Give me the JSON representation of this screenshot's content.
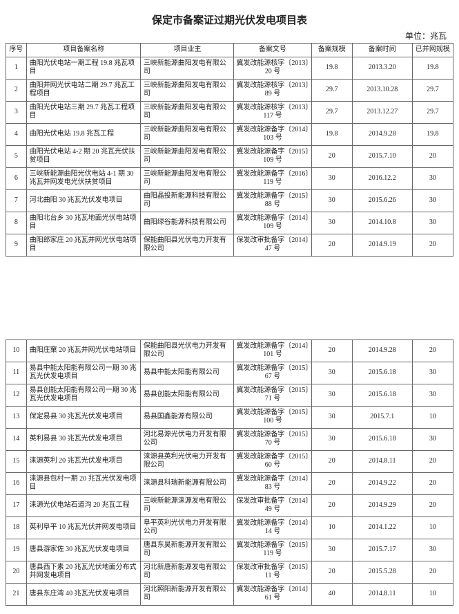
{
  "title": "保定市备案证过期光伏发电项目表",
  "unit": "单位：兆瓦",
  "columns": [
    "序号",
    "项目备案名称",
    "项目业主",
    "备案文号",
    "备案规模",
    "备案时间",
    "已并网规模"
  ],
  "rows1": [
    [
      "1",
      "曲阳光伏电站一期工程 19.8 兆瓦项目",
      "三峡新能源曲阳发电有限公司",
      "冀发改能源核字〔2013〕20 号",
      "19.8",
      "2013.3.20",
      "19.8"
    ],
    [
      "2",
      "曲阳并网光伏电站二期 29.7 兆瓦工程项目",
      "三峡新能源曲阳发电有限公司",
      "冀发改能源核字〔2013〕89 号",
      "29.7",
      "2013.10.28",
      "29.7"
    ],
    [
      "3",
      "曲阳光伏电站三期 29.7 兆瓦工程项目",
      "三峡新能源曲阳发电有限公司",
      "冀发改能源核字〔2013〕117 号",
      "29.7",
      "2013.12.27",
      "29.7"
    ],
    [
      "4",
      "曲阳光伏电站 19.8 兆瓦工程",
      "三峡新能源曲阳发电有限公司",
      "冀发改能源备字〔2014〕103 号",
      "19.8",
      "2014.9.28",
      "19.8"
    ],
    [
      "5",
      "曲阳光伏电站 4-2 期 20 兆瓦光伏扶贫项目",
      "三峡新能源曲阳发电有限公司",
      "冀发改能源备字〔2015〕109 号",
      "20",
      "2015.7.10",
      "20"
    ],
    [
      "6",
      "三峡新能源曲阳光伏电站 4-1 期 30 兆瓦并网发电光伏扶贫项目",
      "三峡新能源曲阳发电有限公司",
      "冀发改能源备字〔2016〕119 号",
      "30",
      "2016.12.2",
      "30"
    ],
    [
      "7",
      "河北曲阳 30 兆瓦光伏发电项目",
      "曲阳晶投新能源科技有限公司",
      "冀发改能源备字〔2015〕88 号",
      "30",
      "2015.6.26",
      "30"
    ],
    [
      "8",
      "曲阳北台乡 30 兆瓦地面光伏电站项目",
      "曲阳绿谷能源科技有限公司",
      "冀发改能源备字〔2014〕109 号",
      "30",
      "2014.10.8",
      "30"
    ],
    [
      "9",
      "曲阳郎家庄 20 兆瓦并网光伏电站项目",
      "保能曲阳县光伏电力开发有限公司",
      "保发改审批备字〔2014〕47 号",
      "20",
      "2014.9.19",
      "20"
    ]
  ],
  "rows2": [
    [
      "10",
      "曲阳庄窠 20 兆瓦并网光伏电站项目",
      "保能曲阳县光伏电力开发有限公司",
      "冀发改能源备字〔2014〕101 号",
      "20",
      "2014.9.28",
      "20"
    ],
    [
      "11",
      "易县中能太阳能有限公司一期 30 兆瓦光伏发电项目",
      "易县中能太阳能有限公司",
      "冀发改能源备字〔2015〕67 号",
      "30",
      "2015.6.18",
      "30"
    ],
    [
      "12",
      "易县创能太阳能有限公司一期 30 兆瓦光伏发电项目",
      "易县创能太阳能有限公司",
      "冀发改能源备字〔2015〕71 号",
      "30",
      "2015.6.18",
      "30"
    ],
    [
      "13",
      "保定易县 30 兆瓦光伏发电项目",
      "易县国鑫能源有限公司",
      "冀发改能源备字〔2015〕100 号",
      "30",
      "2015.7.1",
      "10"
    ],
    [
      "14",
      "英利易县 30 兆瓦光伏发电项目",
      "河北易源光伏电力开发有限公司",
      "冀发改能源备字〔2015〕70 号",
      "30",
      "2015.6.18",
      "30"
    ],
    [
      "15",
      "涞源英利 20 兆瓦光伏发电项目",
      "涞源县英利光伏电力开发有限公司",
      "冀发改能源备字〔2015〕60 号",
      "20",
      "2014.8.11",
      "20"
    ],
    [
      "16",
      "涞源县包村一期 20 兆瓦光伏发电项目",
      "涞源县科瑞新能源有限公司",
      "冀发改能源备字〔2014〕83 号",
      "20",
      "2014.9.22",
      "20"
    ],
    [
      "17",
      "涞源光伏电站石道沟 20 兆瓦工程",
      "三峡新能源涞源发电有限公司",
      "保发改审批备字〔2014〕49 号",
      "20",
      "2014.9.29",
      "20"
    ],
    [
      "18",
      "英利阜平 10 兆瓦光伏并网发电项目",
      "阜平英利光伏电力开发有限公司",
      "冀发改能源备字〔2014〕14 号",
      "10",
      "2014.1.22",
      "10"
    ],
    [
      "19",
      "唐县游家佐 30 兆瓦光伏发电项目",
      "唐县东昊新能源开发有限公司",
      "冀发改能源备字〔2015〕119 号",
      "30",
      "2015.7.17",
      "30"
    ],
    [
      "20",
      "唐县西下素 20 兆瓦光伏地面分布式并网发电项目",
      "河北新唐新能源发电有限公司",
      "保发改审批备字〔2015〕11 号",
      "20",
      "2015.5.28",
      "20"
    ],
    [
      "21",
      "唐县东庄湾 40 兆瓦光伏发电项目",
      "河北照阳新能源开发有限公司",
      "冀发改能源备字〔2014〕61 号",
      "40",
      "2014.8.11",
      "10"
    ]
  ]
}
